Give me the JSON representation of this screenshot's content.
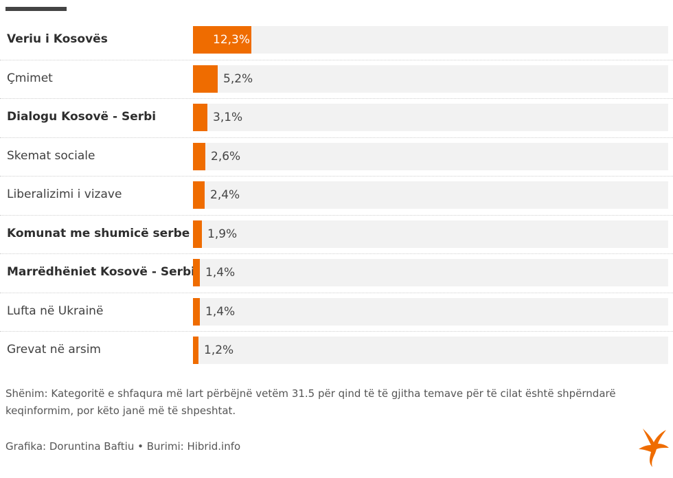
{
  "colors": {
    "bar": "#ef6c00",
    "track": "#f2f2f2",
    "accent_bar": "#444444"
  },
  "chart_data": {
    "type": "bar",
    "orientation": "horizontal",
    "categories": [
      "Veriu i Kosovës",
      "Çmimet",
      "Dialogu Kosovë - Serbi",
      "Skemat sociale",
      "Liberalizimi i vizave",
      "Komunat me shumicë serbe",
      "Marrëdhëniet Kosovë - Serbi",
      "Lufta në Ukrainë",
      "Grevat në arsim"
    ],
    "bold": [
      true,
      false,
      true,
      false,
      false,
      true,
      true,
      false,
      false
    ],
    "values": [
      12.3,
      5.2,
      3.1,
      2.6,
      2.4,
      1.9,
      1.4,
      1.4,
      1.2
    ],
    "value_labels": [
      "12,3%",
      "5,2%",
      "3,1%",
      "2,6%",
      "2,4%",
      "1,9%",
      "1,4%",
      "1,4%",
      "1,2%"
    ],
    "xlim": [
      0,
      100
    ],
    "unit": "%"
  },
  "note": "Shënim: Kategoritë e shfaqura më lart përbëjnë vetëm 31.5 për qind të të gjitha temave për të cilat është shpërndarë keqinformim, por këto janë më të shpeshtat.",
  "credit": "Grafika: Doruntina Baftiu • Burimi: Hibrid.info",
  "logo_icon": "rferl-logo-icon"
}
